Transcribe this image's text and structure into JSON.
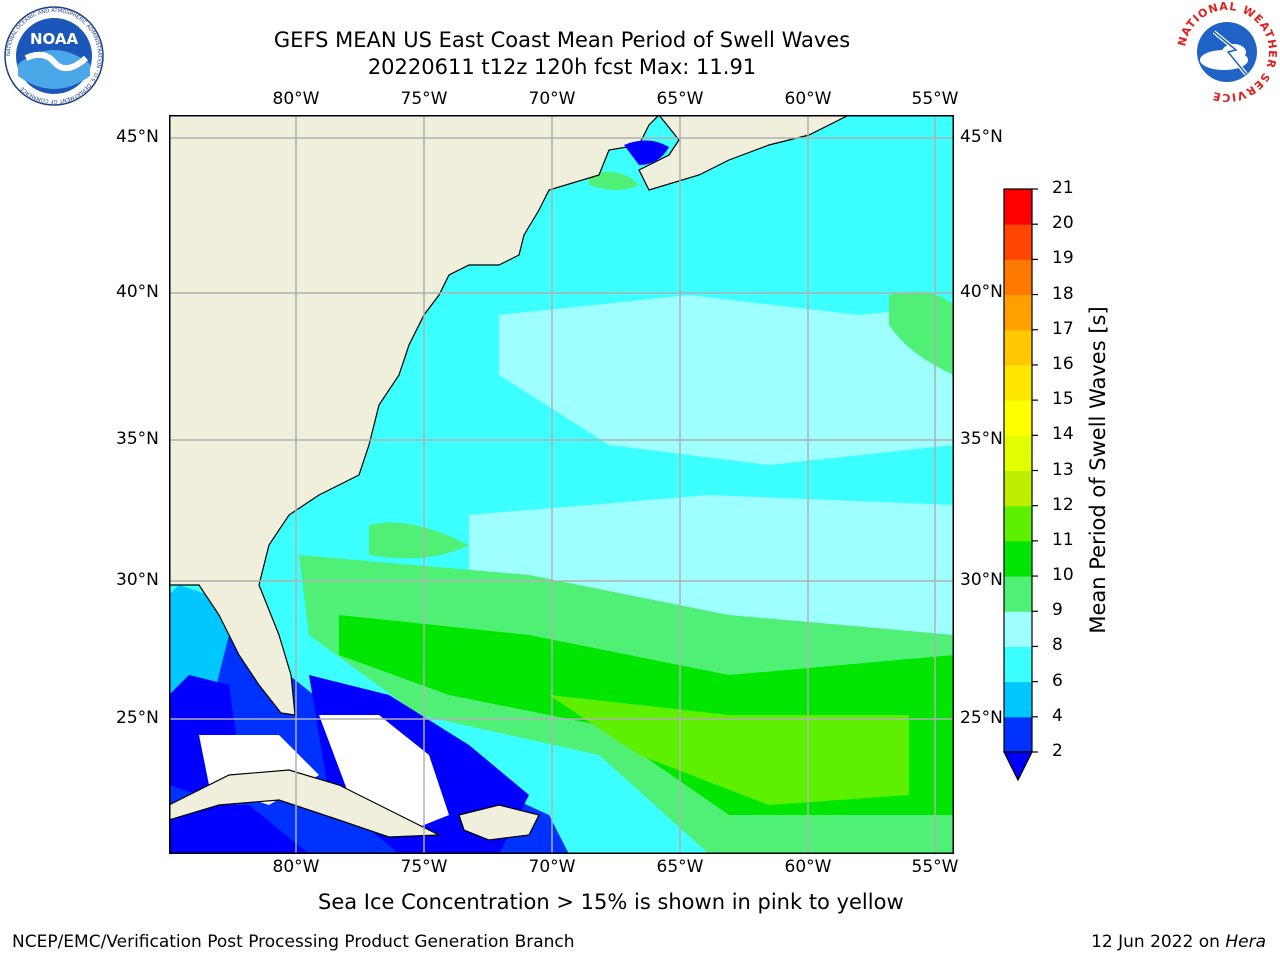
{
  "header": {
    "title_line1": "GEFS MEAN US East Coast Mean Period of Swell Waves",
    "title_line2": "20220611 t12z 120h fcst   Max: 11.91"
  },
  "logos": {
    "left": "NOAA",
    "left_ring": "NATIONAL OCEANIC AND ATMOSPHERIC ADMINISTRATION · U.S. DEPARTMENT OF COMMERCE",
    "right_ring": "NATIONAL WEATHER SERVICE"
  },
  "map": {
    "lon_labels": [
      "80°W",
      "75°W",
      "70°W",
      "65°W",
      "60°W",
      "55°W"
    ],
    "lat_labels": [
      "45°N",
      "40°N",
      "35°N",
      "30°N",
      "25°N"
    ],
    "land_color": "#efefdc",
    "grid_color": "#b0b0b0"
  },
  "colorbar": {
    "label": "Mean Period of Swell Waves [s]",
    "ticks": [
      "2",
      "4",
      "6",
      "8",
      "9",
      "10",
      "11",
      "12",
      "13",
      "14",
      "15",
      "16",
      "17",
      "18",
      "19",
      "20",
      "21"
    ],
    "colors": [
      "#0032ff",
      "#00c8ff",
      "#3cffff",
      "#9effff",
      "#4ff075",
      "#00e600",
      "#5fef00",
      "#beef00",
      "#e1ff00",
      "#ffff00",
      "#ffe600",
      "#ffc800",
      "#ffa000",
      "#ff7800",
      "#ff4600",
      "#ff0000"
    ],
    "under_color": "#0000ff"
  },
  "notes": {
    "ice": "Sea Ice Concentration > 15% is shown in pink to yellow"
  },
  "footer": {
    "left": "NCEP/EMC/Verification Post Processing Product Generation Branch",
    "right_date": "12 Jun 2022 on ",
    "right_machine": "Hera"
  }
}
